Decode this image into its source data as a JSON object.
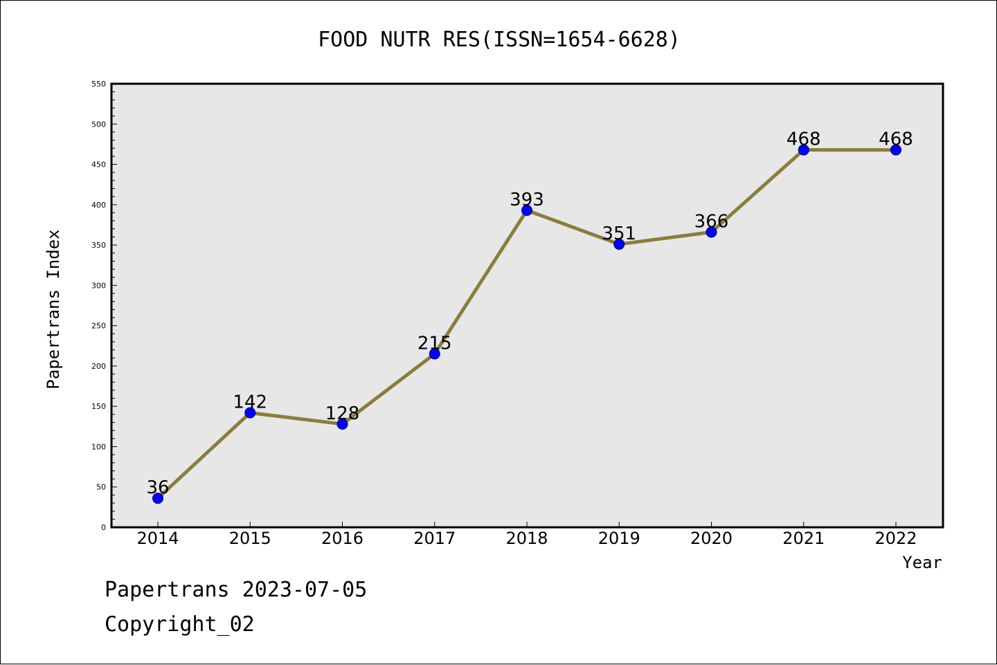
{
  "chart_data": {
    "type": "line",
    "title": "FOOD NUTR RES(ISSN=1654-6628)",
    "xlabel": "Year",
    "ylabel": "Papertrans Index",
    "categories": [
      "2014",
      "2015",
      "2016",
      "2017",
      "2018",
      "2019",
      "2020",
      "2021",
      "2022"
    ],
    "series": [
      {
        "values": [
          36,
          142,
          128,
          215,
          393,
          351,
          366,
          468,
          468
        ]
      }
    ],
    "ylim": [
      0,
      550
    ],
    "yticks": [
      0,
      50,
      100,
      150,
      200,
      250,
      300,
      350,
      400,
      450,
      500,
      550
    ],
    "grid": false,
    "colors": {
      "line": "#8B7D3A",
      "marker": "#0000FF",
      "plot_bg": "#E7E7E7"
    }
  },
  "footer": {
    "line1": "Papertrans 2023-07-05",
    "line2": "Copyright_02"
  }
}
